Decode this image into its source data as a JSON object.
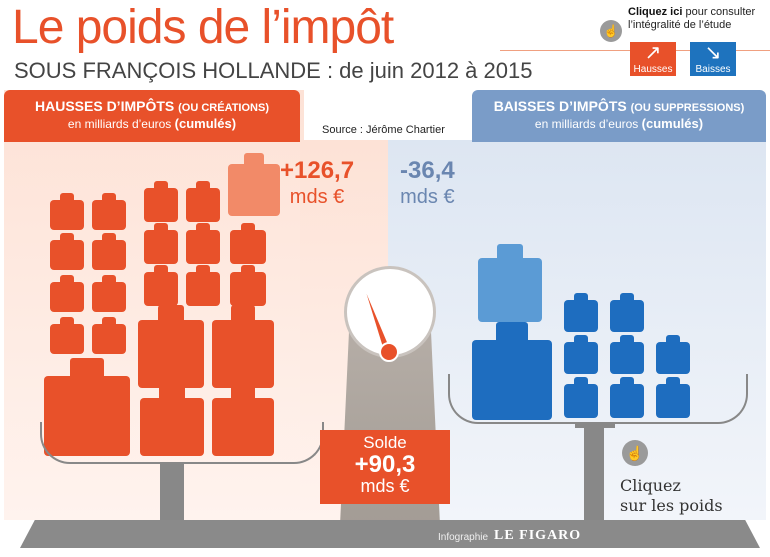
{
  "header": {
    "title": "Le poids de l’impôt",
    "subtitle": "SOUS FRANÇOIS HOLLANDE : de juin 2012 à 2015"
  },
  "cta": {
    "bold": "Cliquez ici",
    "text": " pour consulter l’intégralité de l’étude",
    "hausses_label": "Hausses",
    "baisses_label": "Baisses"
  },
  "left_panel": {
    "heading": "HAUSSES D’IMPÔTS",
    "heading_small": "(OU CRÉATIONS)",
    "sub": "en milliards d’euros",
    "sub_bold": "(cumulés)",
    "value": "+126,7",
    "unit": "mds €"
  },
  "right_panel": {
    "heading": "BAISSES D’IMPÔTS",
    "heading_small": "(OU SUPPRESSIONS)",
    "sub": "en milliards d’euros",
    "sub_bold": "(cumulés)",
    "value": "-36,4",
    "unit": "mds €"
  },
  "source": "Source : Jérôme Chartier",
  "solde": {
    "label": "Solde",
    "value": "+90,3",
    "unit": "mds €"
  },
  "click_hint": {
    "line1": "Cliquez",
    "line2": "sur les poids"
  },
  "credit": {
    "text": "Infographie",
    "brand": "LE FIGARO"
  },
  "colors": {
    "hausses": "#e8512a",
    "baisses": "#1e6dbf",
    "hausses_light": "#f28a68",
    "baisses_light": "#5b9bd5"
  },
  "icons": {
    "hand": "hand-pointer-icon",
    "arrow_up": "arrow-up-right-icon",
    "arrow_down": "arrow-down-right-icon"
  }
}
